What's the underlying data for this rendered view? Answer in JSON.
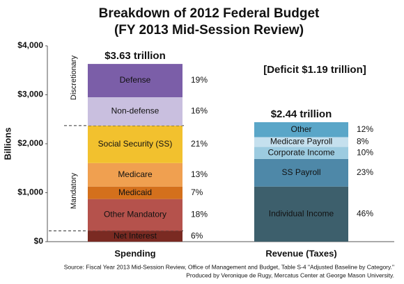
{
  "chart_data": {
    "type": "stacked_bar",
    "title": "Breakdown of 2012 Federal Budget",
    "subtitle": "(FY 2013 Mid-Session Review)",
    "y_label": "Billions",
    "categories": [
      "Spending",
      "Revenue (Taxes)"
    ],
    "ylim": [
      0,
      4000
    ],
    "yticks": [
      {
        "value": 0,
        "label": "$0"
      },
      {
        "value": 1000,
        "label": "$1,000"
      },
      {
        "value": 2000,
        "label": "$2,000"
      },
      {
        "value": 3000,
        "label": "$3,000"
      },
      {
        "value": 4000,
        "label": "$4,000"
      }
    ],
    "bars": [
      {
        "total_label": "$3.63 trillion",
        "segments": [
          {
            "name": "Net Interest",
            "color": "#7a2a22",
            "value": 220,
            "share_label": "6%"
          },
          {
            "name": "Other Mandatory",
            "color": "#b5524c",
            "value": 650,
            "share_label": "18%"
          },
          {
            "name": "Medicaid",
            "color": "#d4701c",
            "value": 255,
            "share_label": "7%"
          },
          {
            "name": "Medicare",
            "color": "#f0a050",
            "value": 480,
            "share_label": "13%"
          },
          {
            "name": "Social Security (SS)",
            "color": "#f2c12e",
            "value": 765,
            "share_label": "21%"
          },
          {
            "name": "Non-defense",
            "color": "#c9bfdf",
            "value": 580,
            "share_label": "16%"
          },
          {
            "name": "Defense",
            "color": "#7b5ea8",
            "value": 680,
            "share_label": "19%"
          }
        ]
      },
      {
        "total_label": "$2.44 trillion",
        "segments": [
          {
            "name": "Individual Income",
            "color": "#3d5f6c",
            "value": 1125,
            "share_label": "46%"
          },
          {
            "name": "SS Payroll",
            "color": "#4e88a8",
            "value": 565,
            "share_label": "23%"
          },
          {
            "name": "Corporate Income",
            "color": "#9ccbe0",
            "value": 245,
            "share_label": "10%"
          },
          {
            "name": "Medicare Payroll",
            "color": "#c5e0ee",
            "value": 200,
            "share_label": "8%"
          },
          {
            "name": "Other",
            "color": "#5aa6c8",
            "value": 305,
            "share_label": "12%"
          }
        ]
      }
    ],
    "annotations": {
      "deficit": "[Deficit  $1.19 trillion]",
      "discretionary": "Discretionary",
      "mandatory": "Mandatory"
    },
    "source": [
      "Source: Fiscal Year 2013 Mid-Session Review, Office of Management and Budget, Table S-4 \"Adjusted Baseline by Category.\"",
      "Produced by Veronique de Rugy, Mercatus Center at George Mason University."
    ]
  }
}
